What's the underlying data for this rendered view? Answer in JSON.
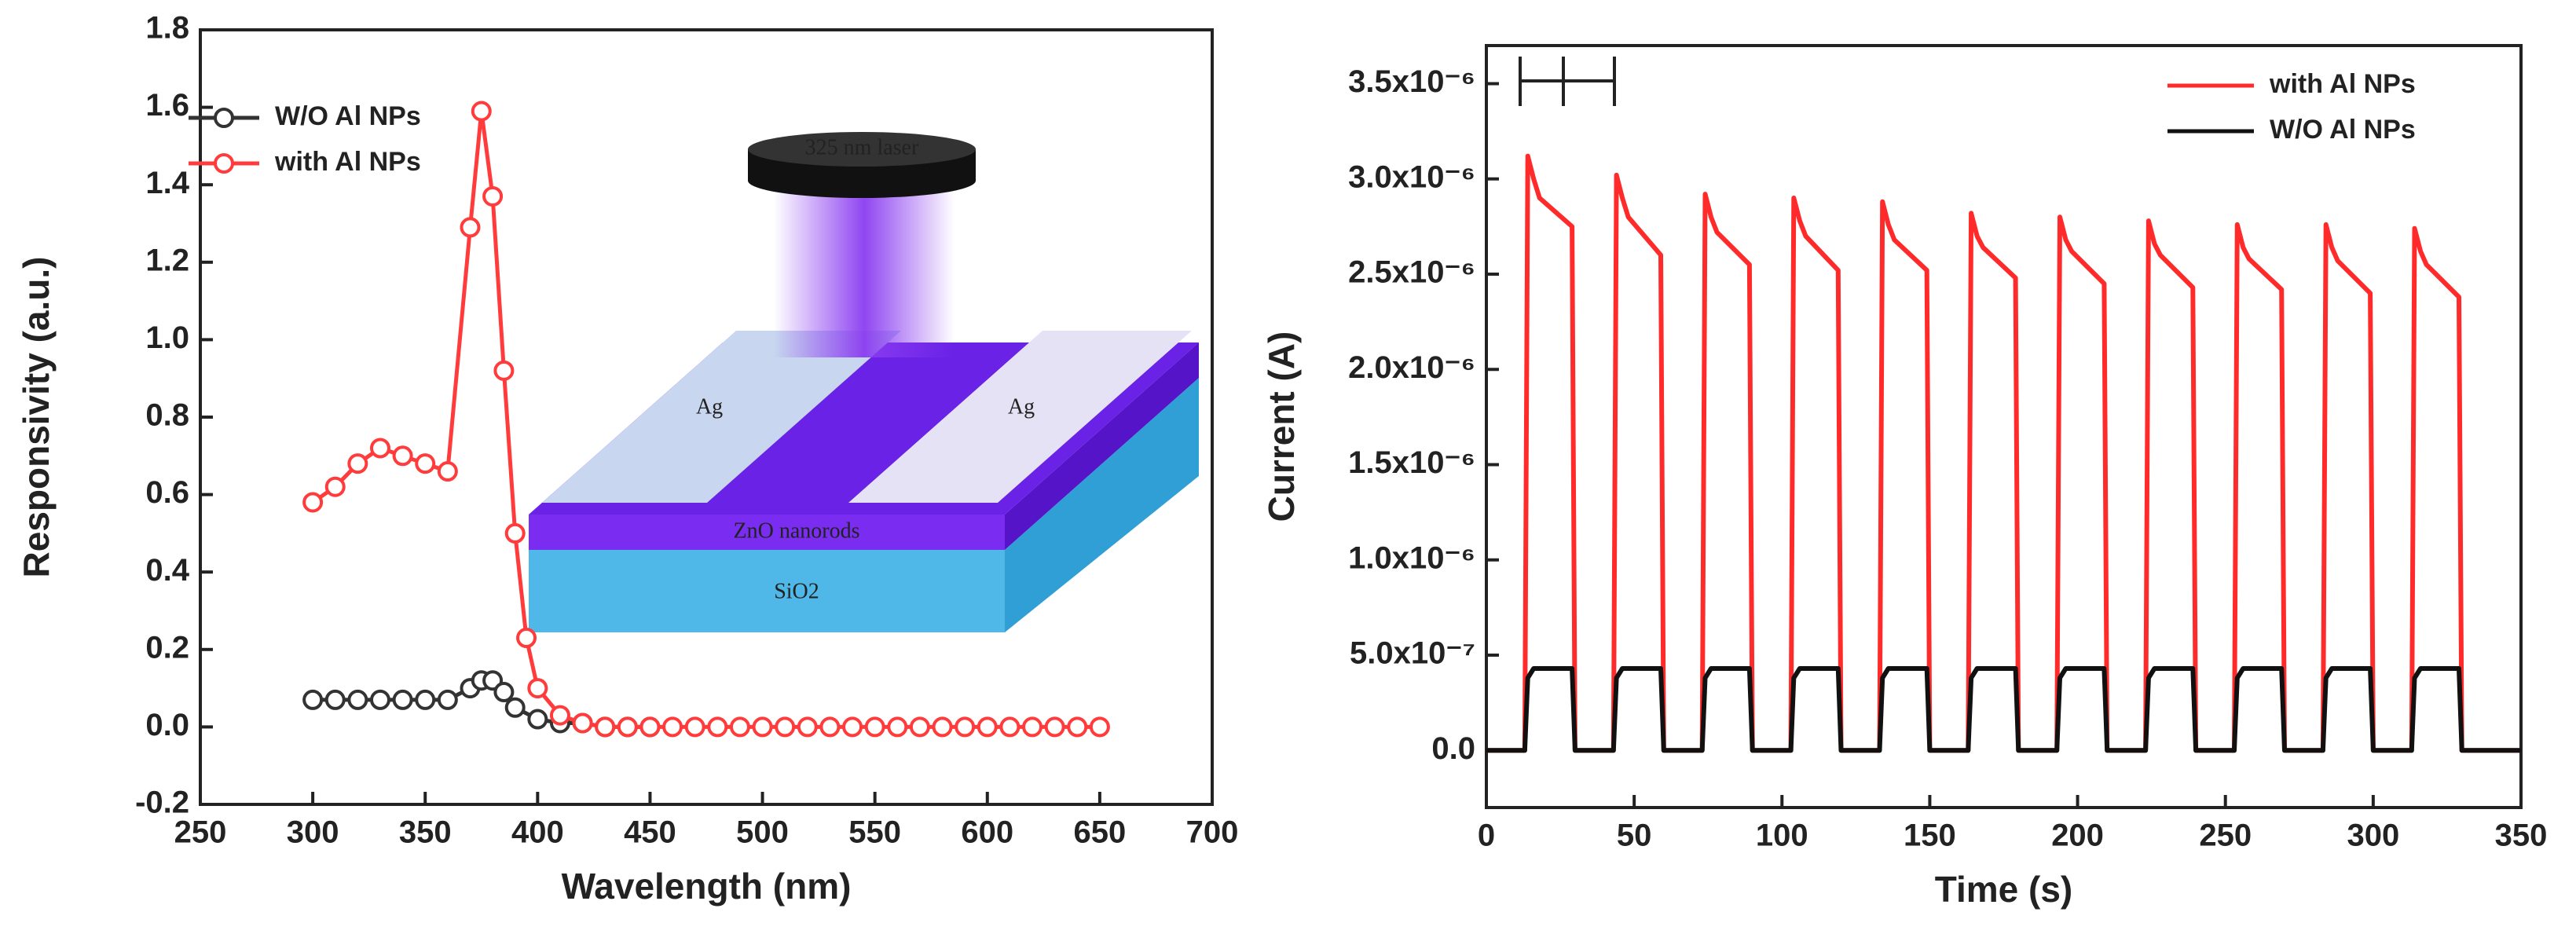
{
  "chart_data": [
    {
      "type": "line",
      "xlabel": "Wavelength (nm)",
      "ylabel": "Responsivity (a.u.)",
      "xlim": [
        250,
        700
      ],
      "xticks": [
        250,
        300,
        350,
        400,
        450,
        500,
        550,
        600,
        650,
        700
      ],
      "ylim": [
        -0.2,
        1.8
      ],
      "yticks": [
        -0.2,
        {
          "value": 0,
          "label": "0.0"
        },
        0.2,
        0.4,
        0.6,
        0.8,
        {
          "value": 1,
          "label": "1.0"
        },
        1.2,
        1.4,
        1.6,
        1.8
      ],
      "legend": "upper left",
      "marker": "circle",
      "series": [
        {
          "name": "W/O Al NPs",
          "color": "#333333",
          "x": [
            300,
            310,
            320,
            330,
            340,
            350,
            360,
            370,
            375,
            380,
            385,
            390,
            400,
            410,
            420,
            430,
            440,
            450
          ],
          "values": [
            0.07,
            0.07,
            0.07,
            0.07,
            0.07,
            0.07,
            0.07,
            0.1,
            0.12,
            0.12,
            0.09,
            0.05,
            0.02,
            0.01,
            0.01,
            0,
            0,
            0
          ]
        },
        {
          "name": "with Al NPs",
          "color": "#ff3b3b",
          "x": [
            300,
            310,
            320,
            330,
            340,
            350,
            360,
            370,
            375,
            380,
            385,
            390,
            395,
            400,
            410,
            420,
            430,
            440,
            450,
            460,
            470,
            480,
            490,
            500,
            510,
            520,
            530,
            540,
            550,
            560,
            570,
            580,
            590,
            600,
            610,
            620,
            630,
            640,
            650
          ],
          "values": [
            0.58,
            0.62,
            0.68,
            0.72,
            0.7,
            0.68,
            0.66,
            1.29,
            1.59,
            1.37,
            0.92,
            0.5,
            0.23,
            0.1,
            0.03,
            0.01,
            0,
            0,
            0,
            0,
            0,
            0,
            0,
            0,
            0,
            0,
            0,
            0,
            0,
            0,
            0,
            0,
            0,
            0,
            0,
            0,
            0,
            0,
            0
          ]
        }
      ],
      "annotations": [
        "325 nm laser",
        "Ag",
        "Ag",
        "ZnO nanorods",
        "SiO2"
      ]
    },
    {
      "type": "line",
      "xlabel": "Time (s)",
      "ylabel": "Current (A)",
      "xlim": [
        0,
        350
      ],
      "xticks": [
        0,
        50,
        100,
        150,
        200,
        250,
        300,
        350
      ],
      "ylim": [
        -3e-07,
        3.7e-06
      ],
      "yticks": [
        {
          "value": 0,
          "label": "0.0"
        },
        {
          "value": 5e-07,
          "label": "5.0x10⁻⁷"
        },
        {
          "value": 1e-06,
          "label": "1.0x10⁻⁶"
        },
        {
          "value": 1.5e-06,
          "label": "1.5x10⁻⁶"
        },
        {
          "value": 2e-06,
          "label": "2.0x10⁻⁶"
        },
        {
          "value": 2.5e-06,
          "label": "2.5x10⁻⁶"
        },
        {
          "value": 3e-06,
          "label": "3.0x10⁻⁶"
        },
        {
          "value": 3.5e-06,
          "label": "3.5x10⁻⁶"
        }
      ],
      "legend": "upper right",
      "x": [
        0,
        13,
        14,
        16,
        18,
        29,
        30,
        43,
        44,
        46,
        48,
        59,
        60,
        73,
        74,
        76,
        78,
        89,
        90,
        103,
        104,
        106,
        108,
        119,
        120,
        133,
        134,
        136,
        138,
        149,
        150,
        163,
        164,
        166,
        168,
        179,
        180,
        193,
        194,
        196,
        198,
        209,
        210,
        223,
        224,
        226,
        228,
        239,
        240,
        253,
        254,
        256,
        258,
        269,
        270,
        283,
        284,
        286,
        288,
        299,
        300,
        313,
        314,
        316,
        318,
        329,
        330,
        350
      ],
      "series": [
        {
          "name": "with Al NPs",
          "color": "#ff2a2a",
          "values": [
            0,
            0,
            3.12e-06,
            3e-06,
            2.9e-06,
            2.75e-06,
            0,
            0,
            3.02e-06,
            2.9e-06,
            2.8e-06,
            2.6e-06,
            0,
            0,
            2.92e-06,
            2.8e-06,
            2.72e-06,
            2.55e-06,
            0,
            0,
            2.9e-06,
            2.78e-06,
            2.7e-06,
            2.52e-06,
            0,
            0,
            2.88e-06,
            2.76e-06,
            2.68e-06,
            2.52e-06,
            0,
            0,
            2.82e-06,
            2.7e-06,
            2.64e-06,
            2.48e-06,
            0,
            0,
            2.8e-06,
            2.68e-06,
            2.62e-06,
            2.45e-06,
            0,
            0,
            2.78e-06,
            2.66e-06,
            2.6e-06,
            2.43e-06,
            0,
            0,
            2.76e-06,
            2.64e-06,
            2.58e-06,
            2.42e-06,
            0,
            0,
            2.76e-06,
            2.64e-06,
            2.57e-06,
            2.4e-06,
            0,
            0,
            2.74e-06,
            2.62e-06,
            2.55e-06,
            2.38e-06,
            0,
            0
          ]
        },
        {
          "name": "W/O Al NPs",
          "color": "#111111",
          "values": [
            0,
            0,
            3.8e-07,
            4.3e-07,
            4.3e-07,
            4.3e-07,
            0,
            0,
            3.8e-07,
            4.3e-07,
            4.3e-07,
            4.3e-07,
            0,
            0,
            3.8e-07,
            4.3e-07,
            4.3e-07,
            4.3e-07,
            0,
            0,
            3.8e-07,
            4.3e-07,
            4.3e-07,
            4.3e-07,
            0,
            0,
            3.8e-07,
            4.3e-07,
            4.3e-07,
            4.3e-07,
            0,
            0,
            3.8e-07,
            4.3e-07,
            4.3e-07,
            4.3e-07,
            0,
            0,
            3.8e-07,
            4.3e-07,
            4.3e-07,
            4.3e-07,
            0,
            0,
            3.8e-07,
            4.3e-07,
            4.3e-07,
            4.3e-07,
            0,
            0,
            3.8e-07,
            4.3e-07,
            4.3e-07,
            4.3e-07,
            0,
            0,
            3.8e-07,
            4.3e-07,
            4.3e-07,
            4.3e-07,
            0,
            0,
            3.8e-07,
            4.3e-07,
            4.3e-07,
            4.3e-07,
            0,
            0
          ]
        }
      ]
    }
  ]
}
